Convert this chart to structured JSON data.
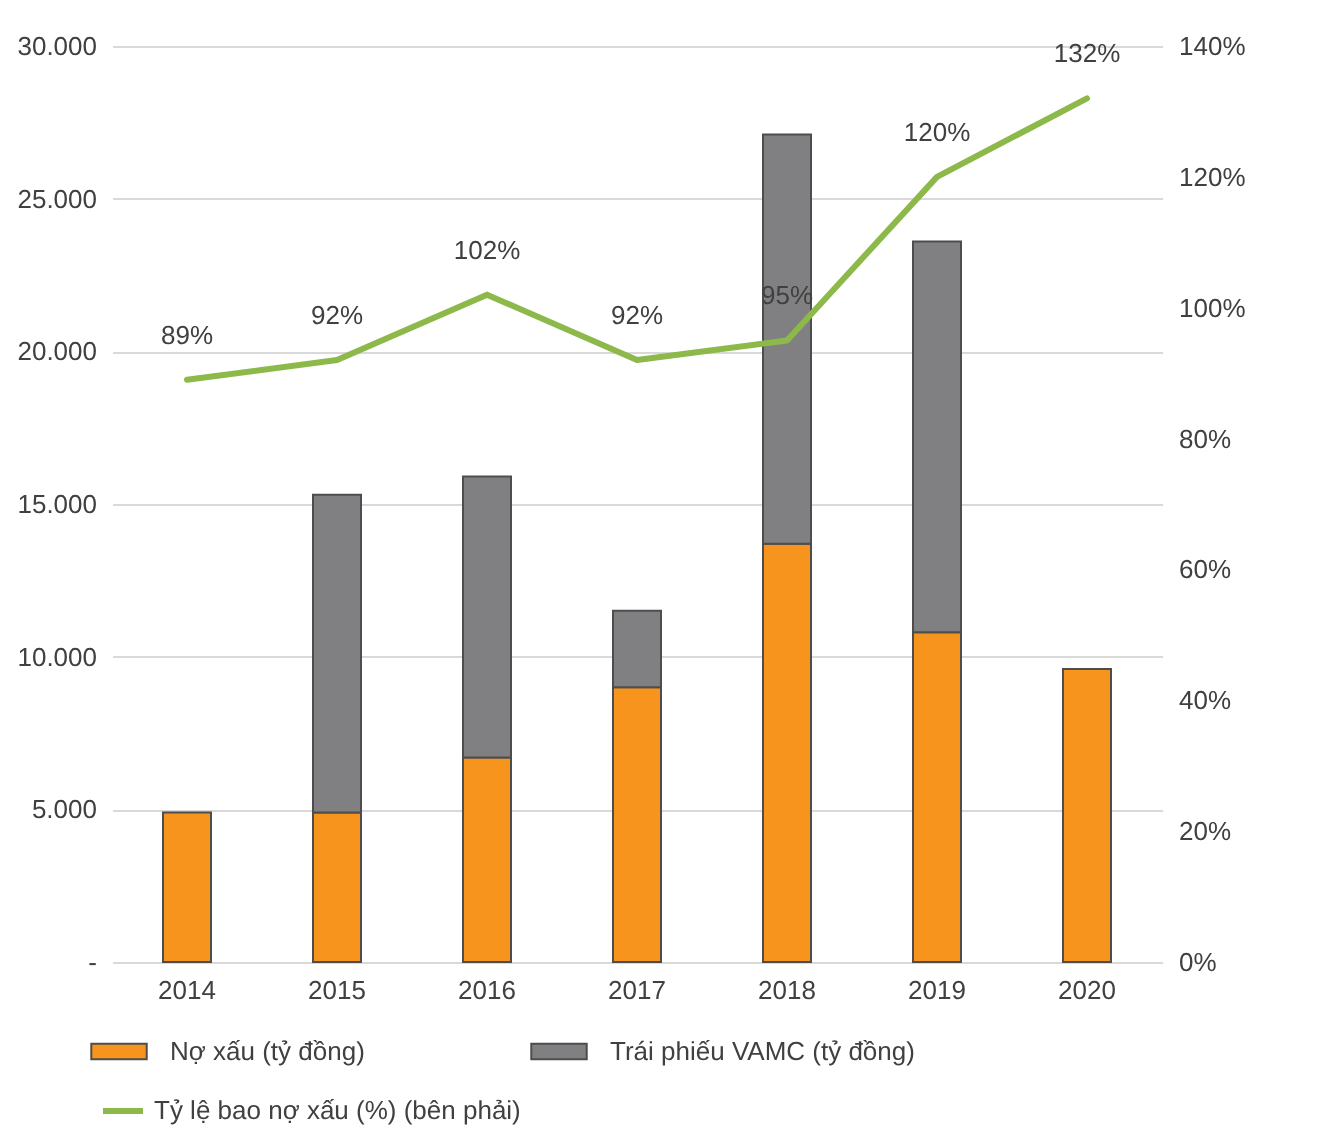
{
  "chart_data": {
    "type": "bar",
    "stacked": true,
    "categories": [
      "2014",
      "2015",
      "2016",
      "2017",
      "2018",
      "2019",
      "2020"
    ],
    "series": [
      {
        "name": "Nợ xấu (tỷ đồng)",
        "color": "#f7941d",
        "values": [
          4900,
          4900,
          6700,
          9000,
          13700,
          10800,
          9600
        ]
      },
      {
        "name": "Trái phiếu VAMC (tỷ đồng)",
        "color": "#808083",
        "values": [
          null,
          10400,
          9200,
          2500,
          13400,
          12800,
          null
        ]
      },
      {
        "name": "Tỷ lệ bao nợ xấu (%) (bên phải)",
        "type": "line",
        "axis": "y2",
        "color": "#8db84a",
        "values": [
          89,
          92,
          102,
          92,
          95,
          120,
          132
        ],
        "value_labels": [
          "89%",
          "92%",
          "102%",
          "92%",
          "95%",
          "120%",
          "132%"
        ]
      }
    ],
    "ylim": [
      0,
      30000
    ],
    "yticks": [
      {
        "value": 0,
        "label": "-"
      },
      {
        "value": 5000,
        "label": "5.000"
      },
      {
        "value": 10000,
        "label": "10.000"
      },
      {
        "value": 15000,
        "label": "15.000"
      },
      {
        "value": 20000,
        "label": "20.000"
      },
      {
        "value": 25000,
        "label": "25.000"
      },
      {
        "value": 30000,
        "label": "30.000"
      }
    ],
    "y2lim": [
      0,
      140
    ],
    "y2ticks": [
      {
        "value": 0,
        "label": "0%"
      },
      {
        "value": 20,
        "label": "20%"
      },
      {
        "value": 40,
        "label": "40%"
      },
      {
        "value": 60,
        "label": "60%"
      },
      {
        "value": 80,
        "label": "80%"
      },
      {
        "value": 100,
        "label": "100%"
      },
      {
        "value": 120,
        "label": "120%"
      },
      {
        "value": 140,
        "label": "140%"
      }
    ],
    "grid": "y",
    "legend": "bottom"
  }
}
